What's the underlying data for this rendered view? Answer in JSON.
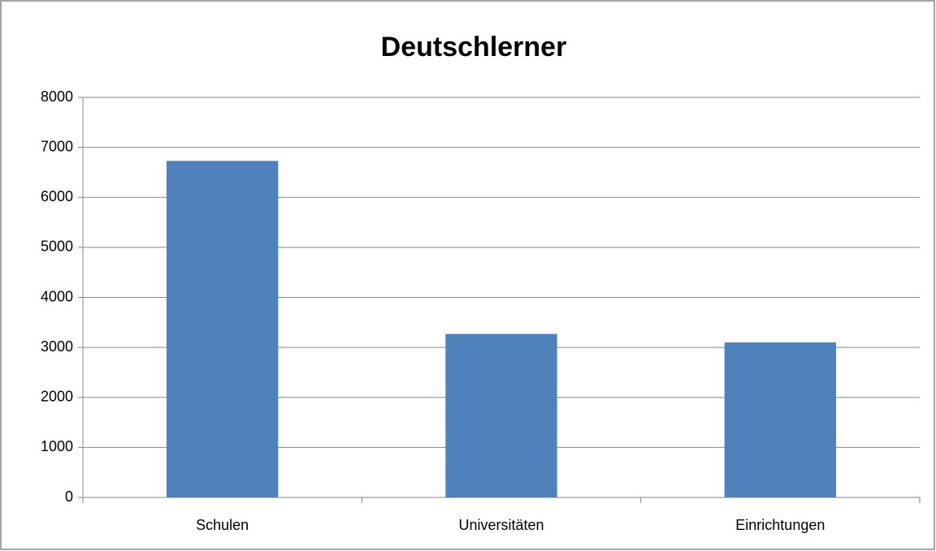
{
  "chart_data": {
    "type": "bar",
    "title": "Deutschlerner",
    "categories": [
      "Schulen",
      "Universitäten",
      "Einrichtungen"
    ],
    "values": [
      6730,
      3270,
      3100
    ],
    "color": "#4f81bd",
    "ylim": [
      0,
      8000
    ],
    "yticks": [
      0,
      1000,
      2000,
      3000,
      4000,
      5000,
      6000,
      7000,
      8000
    ],
    "grid": true
  }
}
